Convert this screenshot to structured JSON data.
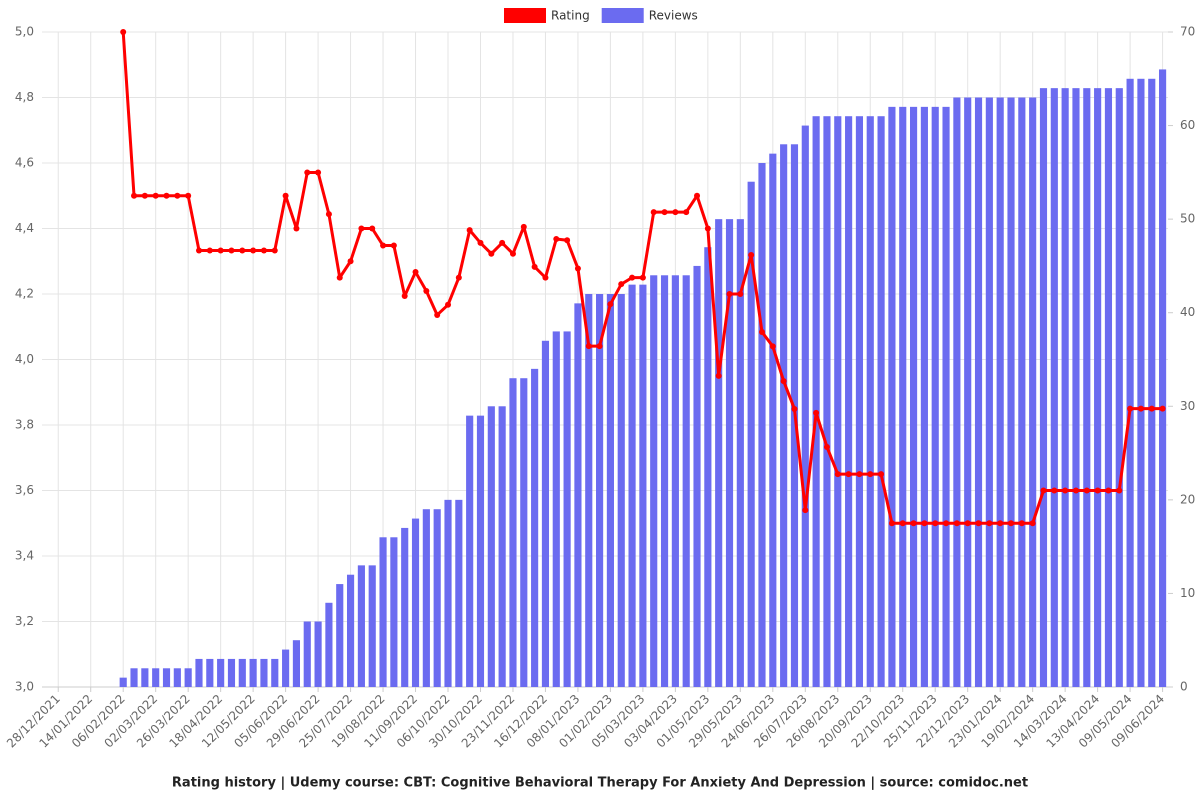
{
  "chart_data": {
    "type": "bar",
    "title": "Rating history | Udemy course: CBT: Cognitive Behavioral Therapy For Anxiety And Depression | source: comidoc.net",
    "categories": [
      null,
      "28/12/2021",
      null,
      null,
      "14/01/2022",
      null,
      null,
      "06/02/2022",
      null,
      null,
      "02/03/2022",
      null,
      null,
      "26/03/2022",
      null,
      null,
      "18/04/2022",
      null,
      null,
      "12/05/2022",
      null,
      null,
      "05/06/2022",
      null,
      null,
      "29/06/2022",
      null,
      null,
      "25/07/2022",
      null,
      null,
      "19/08/2022",
      null,
      null,
      "11/09/2022",
      null,
      null,
      "06/10/2022",
      null,
      null,
      "30/10/2022",
      null,
      null,
      "23/11/2022",
      null,
      null,
      "16/12/2022",
      null,
      null,
      "08/01/2023",
      null,
      null,
      "01/02/2023",
      null,
      null,
      "05/03/2023",
      null,
      null,
      "03/04/2023",
      null,
      null,
      "01/05/2023",
      null,
      null,
      "29/05/2023",
      null,
      null,
      "24/06/2023",
      null,
      null,
      "26/07/2023",
      null,
      null,
      "26/08/2023",
      null,
      null,
      "20/09/2023",
      null,
      null,
      "22/10/2023",
      null,
      null,
      "25/11/2023",
      null,
      null,
      "22/12/2023",
      null,
      null,
      "23/01/2024",
      null,
      null,
      "19/02/2024",
      null,
      null,
      "14/03/2024",
      null,
      null,
      "13/04/2024",
      null,
      null,
      "09/05/2024",
      null,
      null,
      "09/06/2024"
    ],
    "series": [
      {
        "name": "Rating",
        "type": "line",
        "axis": "y",
        "color": "#ff0000",
        "values": [
          null,
          null,
          null,
          null,
          null,
          null,
          null,
          5,
          4.5,
          4.5,
          4.5,
          4.5,
          4.5,
          4.5,
          4.333,
          4.333,
          4.333,
          4.333,
          4.333,
          4.333,
          4.333,
          4.333,
          4.5,
          4.4,
          4.571,
          4.571,
          4.444,
          4.25,
          4.3,
          4.4,
          4.4,
          4.348,
          4.348,
          4.194,
          4.267,
          4.209,
          4.136,
          4.167,
          4.25,
          4.395,
          4.356,
          4.323,
          4.356,
          4.323,
          4.405,
          4.283,
          4.25,
          4.368,
          4.364,
          4.278,
          4.041,
          4.041,
          4.169,
          4.23,
          4.25,
          4.25,
          4.45,
          4.45,
          4.45,
          4.45,
          4.5,
          4.4,
          3.95,
          4.2,
          4.2,
          4.319,
          4.084,
          4.04,
          3.934,
          3.849,
          3.54,
          3.837,
          3.733,
          3.65,
          3.65,
          3.65,
          3.65,
          3.65,
          3.5,
          3.5,
          3.5,
          3.5,
          3.5,
          3.5,
          3.5,
          3.5,
          3.5,
          3.5,
          3.5,
          3.5,
          3.5,
          3.5,
          3.6,
          3.6,
          3.6,
          3.6,
          3.6,
          3.6,
          3.6,
          3.6,
          3.85,
          3.85,
          3.85,
          3.85
        ]
      },
      {
        "name": "Reviews",
        "type": "bar",
        "axis": "y2",
        "color": "#6b6bf0",
        "values": [
          null,
          null,
          null,
          null,
          null,
          null,
          null,
          1,
          2,
          2,
          2,
          2,
          2,
          2,
          3,
          3,
          3,
          3,
          3,
          3,
          3,
          3,
          4,
          5,
          7,
          7,
          9,
          11,
          12,
          13,
          13,
          16,
          16,
          17,
          18,
          19,
          19,
          20,
          20,
          29,
          29,
          30,
          30,
          33,
          33,
          34,
          37,
          38,
          38,
          41,
          42,
          42,
          42,
          42,
          43,
          43,
          44,
          44,
          44,
          44,
          45,
          47,
          50,
          50,
          50,
          54,
          56,
          57,
          58,
          58,
          60,
          61,
          61,
          61,
          61,
          61,
          61,
          61,
          62,
          62,
          62,
          62,
          62,
          62,
          63,
          63,
          63,
          63,
          63,
          63,
          63,
          63,
          64,
          64,
          64,
          64,
          64,
          64,
          64,
          64,
          65,
          65,
          65,
          66
        ]
      }
    ],
    "ylim": [
      3,
      5
    ],
    "yticks": [
      {
        "value": 3,
        "label": "3,0"
      },
      {
        "value": 3.2,
        "label": "3,2"
      },
      {
        "value": 3.4,
        "label": "3,4"
      },
      {
        "value": 3.6,
        "label": "3,6"
      },
      {
        "value": 3.8,
        "label": "3,8"
      },
      {
        "value": 4,
        "label": "4,0"
      },
      {
        "value": 4.2,
        "label": "4,2"
      },
      {
        "value": 4.4,
        "label": "4,4"
      },
      {
        "value": 4.6,
        "label": "4,6"
      },
      {
        "value": 4.8,
        "label": "4,8"
      },
      {
        "value": 5,
        "label": "5,0"
      }
    ],
    "y2lim": [
      0,
      70
    ],
    "y2ticks": [
      0,
      10,
      20,
      30,
      40,
      50,
      60,
      70
    ],
    "grid": true,
    "legend": "top"
  }
}
